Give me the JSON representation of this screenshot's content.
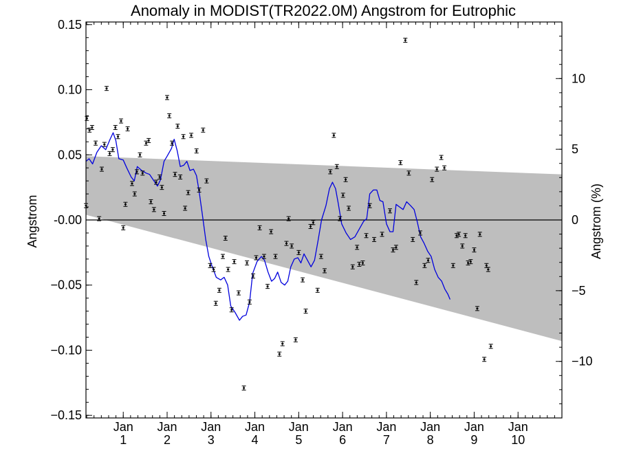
{
  "chart_data": {
    "type": "scatter",
    "title": "Anomaly in MODIST(TR2022.0M) Angstrom for Eutrophic",
    "ylabel": "Angstrom",
    "y2label": "Angstrom (%)",
    "xlim": [
      0.15,
      11.0
    ],
    "ylim": [
      -0.152,
      0.152
    ],
    "y2lim": [
      -14.0,
      14.0
    ],
    "x_ticks": [
      {
        "x": 1,
        "label": "Jan",
        "sub": "1"
      },
      {
        "x": 2,
        "label": "Jan",
        "sub": "2"
      },
      {
        "x": 3,
        "label": "Jan",
        "sub": "3"
      },
      {
        "x": 4,
        "label": "Jan",
        "sub": "4"
      },
      {
        "x": 5,
        "label": "Jan",
        "sub": "5"
      },
      {
        "x": 6,
        "label": "Jan",
        "sub": "6"
      },
      {
        "x": 7,
        "label": "Jan",
        "sub": "7"
      },
      {
        "x": 8,
        "label": "Jan",
        "sub": "8"
      },
      {
        "x": 9,
        "label": "Jan",
        "sub": "9"
      },
      {
        "x": 10,
        "label": "Jan",
        "sub": "10"
      }
    ],
    "y_ticks": [
      0.15,
      0.1,
      0.05,
      0.0,
      -0.05,
      -0.1,
      -0.15
    ],
    "y_tick_labels": [
      "0.15",
      "0.10",
      "0.05",
      "-0.00",
      "−0.05",
      "−0.10",
      "−0.15"
    ],
    "y2_ticks": [
      10,
      5,
      0,
      -5,
      -10
    ],
    "y2_tick_labels": [
      "10",
      "5",
      "0",
      "−5",
      "−10"
    ],
    "zero_line": true,
    "envelope": {
      "color": "#bebebe",
      "upper": [
        [
          0.15,
          0.049
        ],
        [
          11.0,
          0.035
        ]
      ],
      "lower": [
        [
          0.15,
          0.004
        ],
        [
          11.0,
          -0.093
        ]
      ]
    },
    "series": [
      {
        "kind": "points_with_errorbars",
        "color": "#000000",
        "error": 0.0008,
        "points": [
          [
            0.15,
            0.011
          ],
          [
            0.17,
            0.078
          ],
          [
            0.23,
            0.069
          ],
          [
            0.29,
            0.071
          ],
          [
            0.37,
            0.059
          ],
          [
            0.45,
            0.001
          ],
          [
            0.51,
            0.039
          ],
          [
            0.57,
            0.058
          ],
          [
            0.62,
            0.101
          ],
          [
            0.69,
            0.051
          ],
          [
            0.76,
            0.054
          ],
          [
            0.82,
            0.071
          ],
          [
            0.88,
            0.064
          ],
          [
            0.95,
            0.076
          ],
          [
            1.0,
            -0.006
          ],
          [
            1.05,
            0.012
          ],
          [
            1.1,
            0.07
          ],
          [
            1.2,
            0.028
          ],
          [
            1.26,
            0.02
          ],
          [
            1.31,
            0.037
          ],
          [
            1.38,
            0.05
          ],
          [
            1.44,
            0.036
          ],
          [
            1.52,
            0.059
          ],
          [
            1.58,
            0.061
          ],
          [
            1.63,
            0.014
          ],
          [
            1.7,
            0.008
          ],
          [
            1.75,
            0.029
          ],
          [
            1.83,
            0.033
          ],
          [
            1.88,
            0.025
          ],
          [
            1.93,
            0.005
          ],
          [
            2.0,
            0.094
          ],
          [
            2.05,
            0.08
          ],
          [
            2.11,
            0.059
          ],
          [
            2.18,
            0.035
          ],
          [
            2.24,
            0.072
          ],
          [
            2.3,
            0.033
          ],
          [
            2.37,
            0.064
          ],
          [
            2.41,
            0.009
          ],
          [
            2.48,
            0.021
          ],
          [
            2.55,
            0.065
          ],
          [
            2.67,
            0.053
          ],
          [
            2.73,
            0.023
          ],
          [
            2.82,
            0.069
          ],
          [
            2.9,
            0.03
          ],
          [
            2.98,
            -0.035
          ],
          [
            3.06,
            -0.038
          ],
          [
            3.11,
            -0.064
          ],
          [
            3.19,
            -0.054
          ],
          [
            3.27,
            -0.028
          ],
          [
            3.33,
            -0.014
          ],
          [
            3.39,
            -0.038
          ],
          [
            3.47,
            -0.069
          ],
          [
            3.53,
            -0.032
          ],
          [
            3.63,
            -0.056
          ],
          [
            3.75,
            -0.129
          ],
          [
            3.82,
            -0.033
          ],
          [
            3.88,
            -0.063
          ],
          [
            3.96,
            -0.043
          ],
          [
            4.03,
            -0.029
          ],
          [
            4.11,
            -0.006
          ],
          [
            4.21,
            -0.028
          ],
          [
            4.29,
            -0.051
          ],
          [
            4.37,
            -0.009
          ],
          [
            4.47,
            -0.028
          ],
          [
            4.56,
            -0.103
          ],
          [
            4.63,
            -0.095
          ],
          [
            4.72,
            -0.018
          ],
          [
            4.77,
            0.001
          ],
          [
            4.84,
            -0.02
          ],
          [
            4.93,
            -0.092
          ],
          [
            5.0,
            -0.025
          ],
          [
            5.09,
            -0.046
          ],
          [
            5.16,
            -0.07
          ],
          [
            5.27,
            -0.005
          ],
          [
            5.33,
            -0.002
          ],
          [
            5.43,
            -0.054
          ],
          [
            5.51,
            -0.028
          ],
          [
            5.59,
            -0.039
          ],
          [
            5.72,
            0.037
          ],
          [
            5.8,
            0.065
          ],
          [
            5.87,
            0.041
          ],
          [
            5.94,
            0.001
          ],
          [
            6.01,
            0.019
          ],
          [
            6.07,
            0.031
          ],
          [
            6.14,
            0.009
          ],
          [
            6.23,
            -0.036
          ],
          [
            6.33,
            -0.021
          ],
          [
            6.38,
            -0.034
          ],
          [
            6.46,
            -0.033
          ],
          [
            6.54,
            -0.012
          ],
          [
            6.62,
            0.011
          ],
          [
            6.72,
            -0.015
          ],
          [
            6.9,
            -0.011
          ],
          [
            7.08,
            0.007
          ],
          [
            7.15,
            -0.023
          ],
          [
            7.22,
            -0.021
          ],
          [
            7.32,
            0.044
          ],
          [
            7.43,
            0.138
          ],
          [
            7.51,
            0.036
          ],
          [
            7.6,
            -0.015
          ],
          [
            7.68,
            -0.048
          ],
          [
            7.77,
            -0.01
          ],
          [
            7.87,
            -0.035
          ],
          [
            7.95,
            -0.031
          ],
          [
            8.04,
            0.031
          ],
          [
            8.15,
            0.039
          ],
          [
            8.25,
            0.048
          ],
          [
            8.32,
            0.04
          ],
          [
            8.52,
            -0.035
          ],
          [
            8.6,
            -0.012
          ],
          [
            8.65,
            -0.011
          ],
          [
            8.73,
            -0.02
          ],
          [
            8.8,
            -0.012
          ],
          [
            8.86,
            -0.033
          ],
          [
            8.92,
            -0.032
          ],
          [
            9.0,
            -0.023
          ],
          [
            9.07,
            -0.068
          ],
          [
            9.13,
            -0.011
          ],
          [
            9.23,
            -0.107
          ],
          [
            9.28,
            -0.035
          ],
          [
            9.32,
            -0.038
          ],
          [
            9.38,
            -0.097
          ]
        ]
      },
      {
        "kind": "line",
        "color": "#0000dd",
        "points": [
          [
            0.15,
            0.045
          ],
          [
            0.22,
            0.047
          ],
          [
            0.3,
            0.043
          ],
          [
            0.4,
            0.052
          ],
          [
            0.5,
            0.057
          ],
          [
            0.6,
            0.054
          ],
          [
            0.7,
            0.062
          ],
          [
            0.77,
            0.067
          ],
          [
            0.83,
            0.061
          ],
          [
            0.9,
            0.047
          ],
          [
            1.0,
            0.046
          ],
          [
            1.08,
            0.04
          ],
          [
            1.18,
            0.033
          ],
          [
            1.25,
            0.03
          ],
          [
            1.32,
            0.041
          ],
          [
            1.42,
            0.038
          ],
          [
            1.52,
            0.036
          ],
          [
            1.6,
            0.035
          ],
          [
            1.7,
            0.03
          ],
          [
            1.78,
            0.026
          ],
          [
            1.85,
            0.031
          ],
          [
            1.93,
            0.045
          ],
          [
            2.0,
            0.049
          ],
          [
            2.1,
            0.055
          ],
          [
            2.16,
            0.062
          ],
          [
            2.23,
            0.053
          ],
          [
            2.3,
            0.041
          ],
          [
            2.38,
            0.042
          ],
          [
            2.45,
            0.045
          ],
          [
            2.52,
            0.038
          ],
          [
            2.6,
            0.039
          ],
          [
            2.67,
            0.034
          ],
          [
            2.73,
            0.022
          ],
          [
            2.8,
            0.005
          ],
          [
            2.88,
            -0.015
          ],
          [
            2.95,
            -0.028
          ],
          [
            3.02,
            -0.035
          ],
          [
            3.12,
            -0.044
          ],
          [
            3.22,
            -0.046
          ],
          [
            3.3,
            -0.044
          ],
          [
            3.38,
            -0.05
          ],
          [
            3.45,
            -0.066
          ],
          [
            3.55,
            -0.071
          ],
          [
            3.65,
            -0.077
          ],
          [
            3.72,
            -0.074
          ],
          [
            3.8,
            -0.073
          ],
          [
            3.88,
            -0.063
          ],
          [
            3.95,
            -0.041
          ],
          [
            4.05,
            -0.032
          ],
          [
            4.15,
            -0.028
          ],
          [
            4.22,
            -0.031
          ],
          [
            4.3,
            -0.04
          ],
          [
            4.38,
            -0.047
          ],
          [
            4.45,
            -0.045
          ],
          [
            4.52,
            -0.04
          ],
          [
            4.6,
            -0.048
          ],
          [
            4.68,
            -0.05
          ],
          [
            4.75,
            -0.047
          ],
          [
            4.82,
            -0.036
          ],
          [
            4.9,
            -0.03
          ],
          [
            4.98,
            -0.029
          ],
          [
            5.05,
            -0.033
          ],
          [
            5.12,
            -0.026
          ],
          [
            5.2,
            -0.031
          ],
          [
            5.28,
            -0.036
          ],
          [
            5.36,
            -0.031
          ],
          [
            5.44,
            -0.016
          ],
          [
            5.52,
            0.0
          ],
          [
            5.62,
            0.011
          ],
          [
            5.7,
            0.024
          ],
          [
            5.77,
            0.029
          ],
          [
            5.84,
            0.024
          ],
          [
            5.9,
            0.013
          ],
          [
            5.98,
            -0.003
          ],
          [
            6.08,
            -0.01
          ],
          [
            6.18,
            -0.015
          ],
          [
            6.28,
            -0.013
          ],
          [
            6.38,
            -0.007
          ],
          [
            6.48,
            -0.001
          ],
          [
            6.55,
            0.001
          ],
          [
            6.62,
            0.02
          ],
          [
            6.7,
            0.023
          ],
          [
            6.78,
            0.023
          ],
          [
            6.85,
            0.015
          ],
          [
            6.92,
            0.014
          ],
          [
            7.0,
            -0.003
          ],
          [
            7.08,
            -0.009
          ],
          [
            7.15,
            -0.009
          ],
          [
            7.22,
            0.012
          ],
          [
            7.3,
            0.01
          ],
          [
            7.38,
            0.008
          ],
          [
            7.46,
            0.014
          ],
          [
            7.55,
            0.011
          ],
          [
            7.63,
            0.008
          ],
          [
            7.7,
            -0.001
          ],
          [
            7.78,
            -0.013
          ],
          [
            7.86,
            -0.018
          ],
          [
            7.94,
            -0.024
          ],
          [
            8.02,
            -0.028
          ],
          [
            8.1,
            -0.038
          ],
          [
            8.18,
            -0.044
          ],
          [
            8.26,
            -0.047
          ],
          [
            8.33,
            -0.053
          ],
          [
            8.4,
            -0.057
          ],
          [
            8.45,
            -0.061
          ]
        ]
      }
    ]
  }
}
